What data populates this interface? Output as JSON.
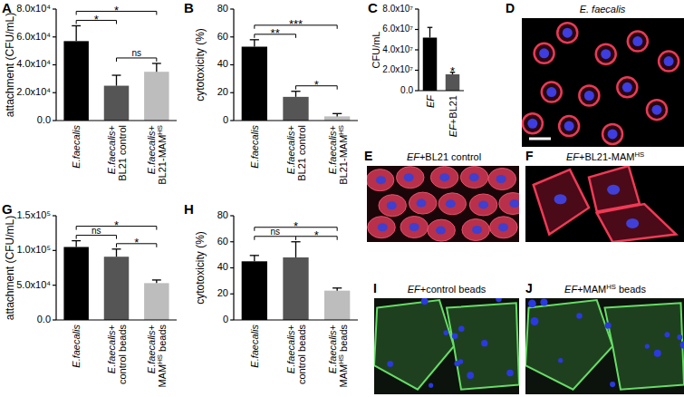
{
  "chart_data": [
    {
      "type": "bar",
      "label": "A",
      "ylabel": "attachment (CFU/mL)",
      "categories": [
        "E.faecalis",
        "E.faecalis+ BL21 control",
        "E.faecalis+ BL21-MAMHS"
      ],
      "values": [
        57000,
        25000,
        35000
      ],
      "errors": [
        11000,
        7500,
        6000
      ],
      "colors": [
        "#000000",
        "#555555",
        "#bdbdbd"
      ],
      "ylim": [
        0,
        80000
      ],
      "yticks": [
        {
          "value": 0,
          "label": "0.0"
        },
        {
          "value": 20000,
          "label": "2.0x10⁴"
        },
        {
          "value": 40000,
          "label": "4.0x10⁴"
        },
        {
          "value": 60000,
          "label": "6.0x10⁴"
        },
        {
          "value": 80000,
          "label": "8.0x10⁴"
        }
      ],
      "annotations": [
        {
          "between": [
            "E.faecalis",
            "E.faecalis+ BL21 control"
          ],
          "text": "*"
        },
        {
          "between": [
            "E.faecalis+ BL21 control",
            "E.faecalis+ BL21-MAMHS"
          ],
          "text": "ns"
        },
        {
          "between": [
            "E.faecalis",
            "E.faecalis+ BL21-MAMHS"
          ],
          "text": "*"
        }
      ]
    },
    {
      "type": "bar",
      "label": "B",
      "ylabel": "cytotoxicity (%)",
      "categories": [
        "E.faecalis",
        "E.faecalis+ BL21 control",
        "E.faecalis+ BL21-MAMHS"
      ],
      "values": [
        53,
        17,
        3
      ],
      "errors": [
        5,
        4,
        2
      ],
      "colors": [
        "#000000",
        "#555555",
        "#bdbdbd"
      ],
      "ylim": [
        0,
        80
      ],
      "yticks": [
        0,
        20,
        40,
        60,
        80
      ],
      "annotations": [
        {
          "between": [
            "E.faecalis",
            "E.faecalis+ BL21 control"
          ],
          "text": "**"
        },
        {
          "between": [
            "E.faecalis+ BL21 control",
            "E.faecalis+ BL21-MAMHS"
          ],
          "text": "*"
        },
        {
          "between": [
            "E.faecalis",
            "E.faecalis+ BL21-MAMHS"
          ],
          "text": "***"
        }
      ]
    },
    {
      "type": "bar",
      "label": "C",
      "ylabel": "CFU/mL",
      "categories": [
        "EF",
        "EF+BL21"
      ],
      "values": [
        52000000,
        16000000
      ],
      "errors": [
        10000000,
        2000000
      ],
      "colors": [
        "#000000",
        "#555555"
      ],
      "ylim": [
        0,
        80000000
      ],
      "yticks": [
        {
          "value": 0,
          "label": "0.0"
        },
        {
          "value": 20000000,
          "label": "2.0x10⁷"
        },
        {
          "value": 40000000,
          "label": "4.0x10⁷"
        },
        {
          "value": 60000000,
          "label": "6.0x10⁷"
        },
        {
          "value": 80000000,
          "label": "8.0x10⁷"
        }
      ],
      "annotations": [
        {
          "at": "EF+BL21",
          "text": "*"
        }
      ]
    },
    {
      "type": "bar",
      "label": "G",
      "ylabel": "attachment (CFU/mL)",
      "categories": [
        "E.faecalis",
        "E.faecalis+ control beads",
        "E.faecalis+ MAMHS beads"
      ],
      "values": [
        105000,
        91000,
        53000
      ],
      "errors": [
        9000,
        11000,
        4500
      ],
      "colors": [
        "#000000",
        "#555555",
        "#bdbdbd"
      ],
      "ylim": [
        0,
        150000
      ],
      "yticks": [
        {
          "value": 0,
          "label": "0.0"
        },
        {
          "value": 50000,
          "label": "5.0x10⁴"
        },
        {
          "value": 100000,
          "label": "1.0x10⁵"
        },
        {
          "value": 150000,
          "label": "1.5x10⁵"
        }
      ],
      "annotations": [
        {
          "between": [
            "E.faecalis",
            "E.faecalis+ control beads"
          ],
          "text": "ns"
        },
        {
          "between": [
            "E.faecalis+ control beads",
            "E.faecalis+ MAMHS beads"
          ],
          "text": "*"
        },
        {
          "between": [
            "E.faecalis",
            "E.faecalis+ MAMHS beads"
          ],
          "text": "*"
        }
      ]
    },
    {
      "type": "bar",
      "label": "H",
      "ylabel": "cytotoxicity (%)",
      "categories": [
        "E.faecalis",
        "E.faecalis+ control beads",
        "E.faecalis+ MAMHS beads"
      ],
      "values": [
        45,
        48,
        22.5
      ],
      "errors": [
        4.5,
        12,
        2
      ],
      "colors": [
        "#000000",
        "#555555",
        "#bdbdbd"
      ],
      "ylim": [
        0,
        80
      ],
      "yticks": [
        0,
        20,
        40,
        60,
        80
      ],
      "annotations": [
        {
          "between": [
            "E.faecalis",
            "E.faecalis+ control beads"
          ],
          "text": "ns"
        },
        {
          "between": [
            "E.faecalis+ control beads",
            "E.faecalis+ MAMHS beads"
          ],
          "text": "*"
        },
        {
          "between": [
            "E.faecalis",
            "E.faecalis+ MAMHS beads"
          ],
          "text": "*"
        }
      ]
    }
  ],
  "images": [
    {
      "label": "D",
      "caption": [
        {
          "text": "E. faecalis",
          "style": "italic"
        }
      ]
    },
    {
      "label": "E",
      "caption": [
        {
          "text": "EF",
          "style": "italic"
        },
        {
          "text": "+BL21 control"
        }
      ]
    },
    {
      "label": "F",
      "caption": [
        {
          "text": "EF",
          "style": "italic"
        },
        {
          "text": "+BL21-MAM"
        },
        {
          "text": "HS",
          "style": "sup"
        }
      ]
    },
    {
      "label": "I",
      "caption": [
        {
          "text": "EF",
          "style": "italic"
        },
        {
          "text": "+control beads"
        }
      ]
    },
    {
      "label": "J",
      "caption": [
        {
          "text": "EF",
          "style": "italic"
        },
        {
          "text": "+MAM"
        },
        {
          "text": "HS",
          "style": "sup"
        },
        {
          "text": " beads"
        }
      ]
    }
  ]
}
